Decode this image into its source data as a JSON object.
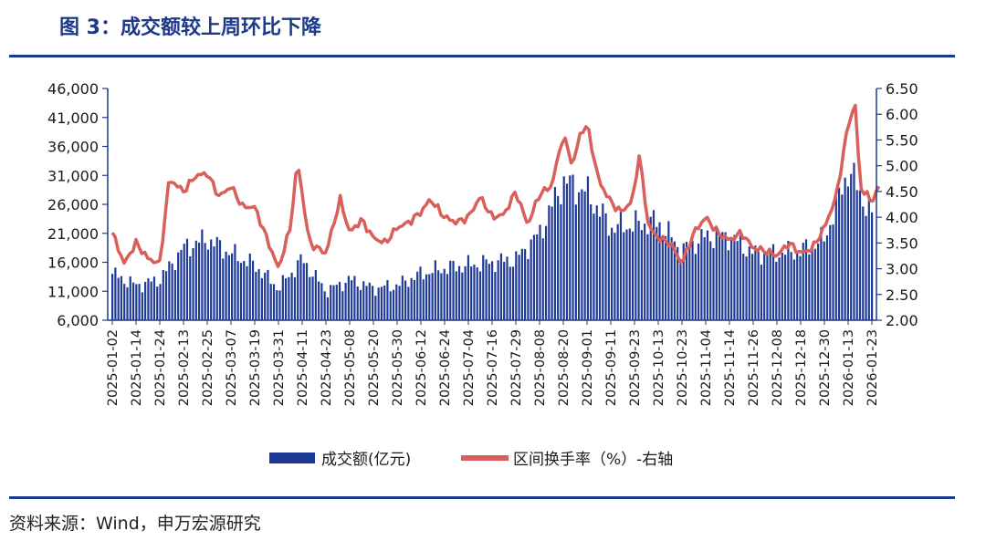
{
  "title": "图 3：成交额较上周环比下降",
  "source": "资料来源：Wind，申万宏源研究",
  "colors": {
    "bar": "#1f3a96",
    "line": "#d9605a",
    "axis": "#1d3a8a",
    "title": "#1d3a8a"
  },
  "chart_data": {
    "type": "bar+line",
    "title": "成交额较上周环比下降",
    "left_axis": {
      "label": "成交额(亿元)",
      "min": 6000,
      "max": 46000,
      "ticks": [
        "6,000",
        "11,000",
        "16,000",
        "21,000",
        "26,000",
        "31,000",
        "36,000",
        "41,000",
        "46,000"
      ]
    },
    "right_axis": {
      "label": "区间换手率（%）",
      "min": 2.0,
      "max": 6.5,
      "ticks": [
        "2.00",
        "2.50",
        "3.00",
        "3.50",
        "4.00",
        "4.50",
        "5.00",
        "5.50",
        "6.00",
        "6.50"
      ]
    },
    "x_labels": [
      "2025-01-02",
      "2025-01-14",
      "2025-01-24",
      "2025-02-13",
      "2025-02-25",
      "2025-03-07",
      "2025-03-19",
      "2025-03-31",
      "2025-04-11",
      "2025-04-23",
      "2025-05-08",
      "2025-05-20",
      "2025-05-30",
      "2025-06-12",
      "2025-06-24",
      "2025-07-04",
      "2025-07-16",
      "2025-07-29",
      "2025-08-08",
      "2025-08-20",
      "2025-09-01",
      "2025-09-11",
      "2025-09-23",
      "2025-10-13",
      "2025-10-23",
      "2025-11-04",
      "2025-11-14",
      "2025-11-26",
      "2025-12-08",
      "2025-12-18",
      "2025-12-30",
      "2026-01-13",
      "2026-01-23"
    ],
    "series": [
      {
        "name": "成交额(亿元)",
        "type": "bar",
        "axis": "left",
        "anchors": [
          [
            0,
            14000
          ],
          [
            1,
            12000
          ],
          [
            2,
            13000
          ],
          [
            3,
            18500
          ],
          [
            4,
            20000
          ],
          [
            5,
            17500
          ],
          [
            6,
            15500
          ],
          [
            7,
            11500
          ],
          [
            8,
            16500
          ],
          [
            9,
            11000
          ],
          [
            10,
            13000
          ],
          [
            11,
            11500
          ],
          [
            12,
            12000
          ],
          [
            13,
            14000
          ],
          [
            14,
            15000
          ],
          [
            15,
            15500
          ],
          [
            16,
            16000
          ],
          [
            17,
            16500
          ],
          [
            18,
            21000
          ],
          [
            19,
            30000
          ],
          [
            20,
            28000
          ],
          [
            21,
            22000
          ],
          [
            22,
            22500
          ],
          [
            23,
            23000
          ],
          [
            24,
            18000
          ],
          [
            25,
            20500
          ],
          [
            26,
            20500
          ],
          [
            27,
            17500
          ],
          [
            28,
            17500
          ],
          [
            29,
            18000
          ],
          [
            30,
            20000
          ],
          [
            31,
            32000
          ],
          [
            32,
            24000
          ]
        ]
      },
      {
        "name": "区间换手率（%）-右轴",
        "type": "line",
        "axis": "right",
        "anchors": [
          [
            0,
            3.7
          ],
          [
            0.5,
            3.1
          ],
          [
            1,
            3.5
          ],
          [
            1.5,
            3.2
          ],
          [
            2,
            3.1
          ],
          [
            2.4,
            4.75
          ],
          [
            3,
            4.5
          ],
          [
            3.5,
            4.8
          ],
          [
            4,
            4.85
          ],
          [
            4.5,
            4.4
          ],
          [
            5,
            4.6
          ],
          [
            5.5,
            4.2
          ],
          [
            6,
            4.2
          ],
          [
            6.5,
            3.6
          ],
          [
            7,
            3.0
          ],
          [
            7.5,
            3.8
          ],
          [
            7.8,
            5.1
          ],
          [
            8.3,
            3.5
          ],
          [
            9,
            3.3
          ],
          [
            9.6,
            4.35
          ],
          [
            10,
            3.7
          ],
          [
            10.5,
            3.95
          ],
          [
            11,
            3.6
          ],
          [
            11.5,
            3.5
          ],
          [
            12,
            3.8
          ],
          [
            12.5,
            3.9
          ],
          [
            13,
            4.1
          ],
          [
            13.4,
            4.35
          ],
          [
            14,
            4.0
          ],
          [
            14.5,
            3.9
          ],
          [
            15,
            4.0
          ],
          [
            15.5,
            4.4
          ],
          [
            16,
            4.0
          ],
          [
            16.5,
            4.05
          ],
          [
            17,
            4.5
          ],
          [
            17.5,
            3.85
          ],
          [
            18,
            4.45
          ],
          [
            18.5,
            4.6
          ],
          [
            19,
            5.6
          ],
          [
            19.4,
            5.0
          ],
          [
            19.7,
            5.6
          ],
          [
            20,
            5.8
          ],
          [
            20.5,
            4.7
          ],
          [
            21,
            4.3
          ],
          [
            21.4,
            4.1
          ],
          [
            21.9,
            4.3
          ],
          [
            22.2,
            5.2
          ],
          [
            22.6,
            3.8
          ],
          [
            23,
            3.6
          ],
          [
            23.5,
            3.5
          ],
          [
            24,
            3.1
          ],
          [
            24.5,
            3.7
          ],
          [
            25,
            4.0
          ],
          [
            25.5,
            3.7
          ],
          [
            26,
            3.55
          ],
          [
            26.5,
            3.7
          ],
          [
            27,
            3.4
          ],
          [
            27.5,
            3.35
          ],
          [
            28,
            3.25
          ],
          [
            28.5,
            3.5
          ],
          [
            29,
            3.3
          ],
          [
            29.5,
            3.4
          ],
          [
            30,
            3.8
          ],
          [
            30.5,
            4.4
          ],
          [
            31,
            5.8
          ],
          [
            31.3,
            6.2
          ],
          [
            31.5,
            4.6
          ],
          [
            32,
            4.3
          ],
          [
            32.3,
            4.6
          ]
        ]
      }
    ],
    "legend": {
      "position": "bottom",
      "entries": [
        "成交额(亿元)",
        "区间换手率（%）-右轴"
      ]
    }
  }
}
